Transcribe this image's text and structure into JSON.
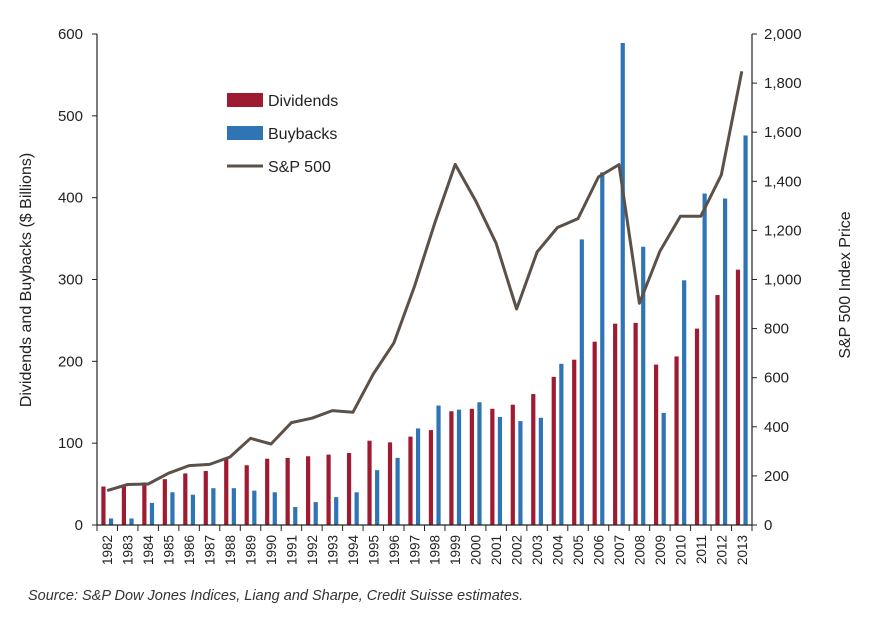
{
  "chart_data": {
    "type": "bar+line",
    "title": "",
    "categories": [
      "1982",
      "1983",
      "1984",
      "1985",
      "1986",
      "1987",
      "1988",
      "1989",
      "1990",
      "1991",
      "1992",
      "1993",
      "1994",
      "1995",
      "1996",
      "1997",
      "1998",
      "1999",
      "2000",
      "2001",
      "2002",
      "2003",
      "2004",
      "2005",
      "2006",
      "2007",
      "2008",
      "2009",
      "2010",
      "2011",
      "2012",
      "2013"
    ],
    "series": [
      {
        "name": "Dividends",
        "type": "bar",
        "axis": "left",
        "color": "#9e1b32",
        "values": [
          47,
          47,
          52,
          56,
          63,
          66,
          82,
          73,
          81,
          82,
          84,
          86,
          88,
          103,
          101,
          108,
          116,
          139,
          142,
          142,
          147,
          160,
          181,
          202,
          224,
          246,
          247,
          196,
          206,
          240,
          281,
          312
        ]
      },
      {
        "name": "Buybacks",
        "type": "bar",
        "axis": "left",
        "color": "#2f74b5",
        "values": [
          8,
          8,
          27,
          40,
          37,
          45,
          45,
          42,
          40,
          22,
          28,
          34,
          40,
          67,
          82,
          118,
          146,
          141,
          150,
          132,
          127,
          131,
          197,
          349,
          431,
          589,
          340,
          137,
          299,
          405,
          399,
          476
        ]
      },
      {
        "name": "S&P 500",
        "type": "line",
        "axis": "right",
        "color": "#5b5148",
        "values": [
          140,
          165,
          167,
          211,
          242,
          247,
          277,
          353,
          330,
          417,
          435,
          466,
          459,
          615,
          741,
          970,
          1229,
          1469,
          1320,
          1148,
          880,
          1112,
          1212,
          1248,
          1418,
          1468,
          903,
          1115,
          1258,
          1258,
          1426,
          1848
        ]
      }
    ],
    "ylabel": "Dividends and Buybacks ($ Billions)",
    "y2label": "S&P 500 Index Price",
    "ylim": [
      0,
      600
    ],
    "y2lim": [
      0,
      2000
    ],
    "yticks": [
      "0",
      "100",
      "200",
      "300",
      "400",
      "500",
      "600"
    ],
    "y2ticks": [
      "0",
      "200",
      "400",
      "600",
      "800",
      "1,000",
      "1,200",
      "1,400",
      "1,600",
      "1,800",
      "2,000"
    ],
    "legend": {
      "placement": "upper-left inside plot",
      "entries": [
        "Dividends",
        "Buybacks",
        "S&P 500"
      ]
    },
    "grid": false
  },
  "source": "Source: S&P Dow Jones Indices, Liang and Sharpe, Credit Suisse estimates."
}
